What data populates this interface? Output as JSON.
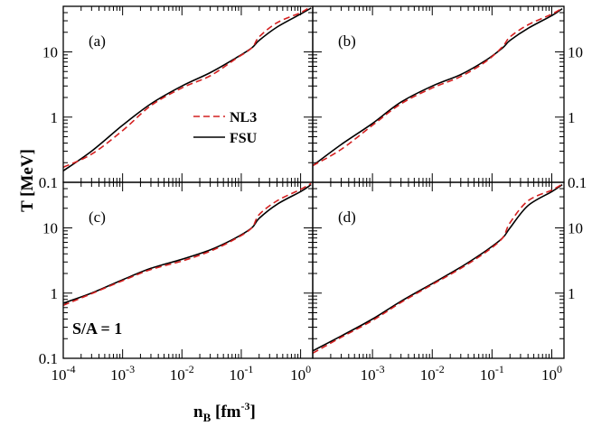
{
  "chart_data": {
    "type": "line",
    "xlabel": "n_B [fm^-3]",
    "xlabel_parts": {
      "base": "n",
      "sub": "B",
      "unit_open": " [fm",
      "unit_sup": "-3",
      "unit_close": "]"
    },
    "ylabel": "T [MeV]",
    "x_scale": "log",
    "y_scale": "log",
    "xlim": [
      0.0001,
      1.6
    ],
    "ylim": [
      0.1,
      50
    ],
    "x_ticks": [
      {
        "value": 0.0001,
        "base": "10",
        "exp": "-4"
      },
      {
        "value": 0.001,
        "base": "10",
        "exp": "-3"
      },
      {
        "value": 0.01,
        "base": "10",
        "exp": "-2"
      },
      {
        "value": 0.1,
        "base": "10",
        "exp": "-1"
      },
      {
        "value": 1,
        "base": "10",
        "exp": "0"
      }
    ],
    "y_ticks_left": [
      {
        "value": 0.1,
        "label": "0.1"
      },
      {
        "value": 1,
        "label": "1"
      },
      {
        "value": 10,
        "label": "10"
      }
    ],
    "y_ticks_right": [
      {
        "value": 0.1,
        "label": "0.1"
      },
      {
        "value": 1,
        "label": "1"
      },
      {
        "value": 10,
        "label": "10"
      }
    ],
    "legend": {
      "position": "center",
      "entries": [
        {
          "name": "NL3",
          "color": "#d42020",
          "dash": true
        },
        {
          "name": "FSU",
          "color": "#000000",
          "dash": false
        }
      ]
    },
    "annotation": "S/A = 1",
    "x_points": [
      0.0001,
      0.0003,
      0.001,
      0.003,
      0.01,
      0.03,
      0.08,
      0.15,
      0.2,
      0.4,
      1.0,
      1.5
    ],
    "panels": [
      {
        "label": "(a)",
        "series": [
          {
            "name": "FSU",
            "values": [
              0.15,
              0.3,
              0.75,
              1.6,
              3.0,
              4.8,
              8.0,
              11.5,
              15.0,
              24.0,
              38.0,
              47.0
            ]
          },
          {
            "name": "NL3",
            "values": [
              0.17,
              0.27,
              0.62,
              1.5,
              2.8,
              4.3,
              7.8,
              11.5,
              17.0,
              28.0,
              40.0,
              50.0
            ]
          }
        ]
      },
      {
        "label": "(b)",
        "series": [
          {
            "name": "FSU",
            "values": [
              0.18,
              0.38,
              0.8,
              1.7,
              3.0,
              4.5,
              7.5,
              11.5,
              15.0,
              23.0,
              36.0,
              46.0
            ]
          },
          {
            "name": "NL3",
            "values": [
              0.18,
              0.32,
              0.75,
              1.6,
              2.8,
              4.2,
              7.2,
              12.0,
              17.0,
              26.0,
              38.0,
              47.0
            ]
          }
        ]
      },
      {
        "label": "(c)",
        "series": [
          {
            "name": "FSU",
            "values": [
              0.7,
              1.0,
              1.6,
              2.4,
              3.3,
              4.6,
              7.0,
              10.0,
              14.0,
              23.0,
              36.0,
              46.0
            ]
          },
          {
            "name": "NL3",
            "values": [
              0.65,
              0.98,
              1.55,
              2.3,
              3.1,
              4.4,
              6.8,
              10.0,
              16.0,
              26.0,
              39.0,
              48.0
            ]
          }
        ]
      },
      {
        "label": "(d)",
        "series": [
          {
            "name": "FSU",
            "values": [
              0.13,
              0.22,
              0.4,
              0.75,
              1.4,
              2.5,
              4.5,
              7.0,
              10.0,
              22.0,
              36.0,
              46.0
            ]
          },
          {
            "name": "NL3",
            "values": [
              0.12,
              0.21,
              0.38,
              0.72,
              1.35,
              2.4,
              4.3,
              7.0,
              12.0,
              26.0,
              38.0,
              47.0
            ]
          }
        ]
      }
    ]
  }
}
